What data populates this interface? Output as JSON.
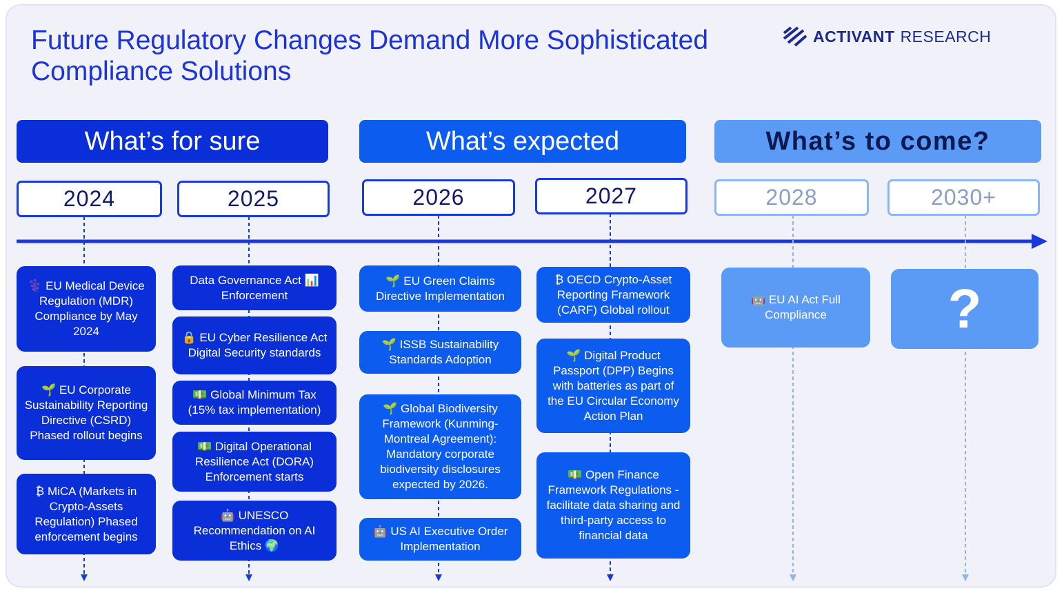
{
  "header": {
    "title": "Future Regulatory Changes Demand More Sophisticated Compliance Solutions",
    "brand_primary": "ACTIVANT",
    "brand_secondary": "RESEARCH"
  },
  "sections": [
    {
      "label": "What’s for sure"
    },
    {
      "label": "What’s expected"
    },
    {
      "label": "What’s to come?"
    }
  ],
  "years": [
    {
      "label": "2024",
      "items": [
        "⚕️ EU Medical Device Regulation (MDR) Compliance by May 2024",
        "🌱 EU Corporate Sustainability Reporting Directive (CSRD) Phased rollout begins",
        "₿ MiCA (Markets in Crypto-Assets Regulation) Phased enforcement begins"
      ]
    },
    {
      "label": "2025",
      "items": [
        "Data Governance Act 📊 Enforcement",
        "🔒 EU Cyber Resilience Act Digital Security standards",
        "💵 Global Minimum Tax (15% tax implementation)",
        "💵 Digital Operational Resilience Act (DORA) Enforcement starts",
        "🤖 UNESCO Recommendation on AI Ethics 🌍"
      ]
    },
    {
      "label": "2026",
      "items": [
        "🌱 EU Green Claims Directive Implementation",
        "🌱 ISSB Sustainability Standards Adoption",
        "🌱 Global Biodiversity Framework (Kunming-Montreal Agreement): Mandatory corporate biodiversity disclosures expected by 2026.",
        "🤖 US AI Executive Order Implementation"
      ]
    },
    {
      "label": "2027",
      "items": [
        "₿ OECD Crypto-Asset Reporting Framework (CARF) Global rollout",
        "🌱 Digital Product Passport (DPP) Begins with batteries as part of the EU Circular Economy Action Plan",
        "💵 Open Finance Framework Regulations - facilitate data sharing and third-party access to financial data"
      ]
    },
    {
      "label": "2028",
      "items": [
        "🤖 EU AI Act Full Compliance"
      ]
    },
    {
      "label": "2030+",
      "items": [
        "?"
      ]
    }
  ]
}
